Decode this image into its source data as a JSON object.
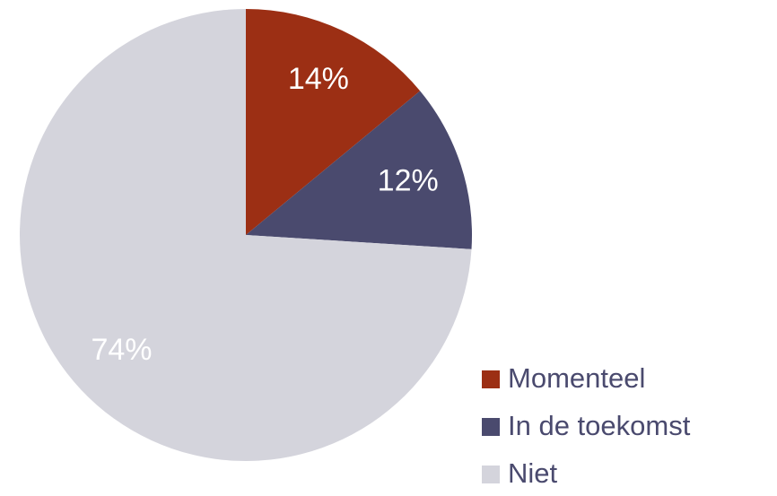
{
  "chart_data": {
    "type": "pie",
    "categories": [
      "Momenteel",
      "In de toekomst",
      "Niet"
    ],
    "values": [
      14,
      12,
      74
    ],
    "value_labels": [
      "14%",
      "12%",
      "74%"
    ],
    "colors": [
      "#9c2f14",
      "#4a4a6e",
      "#d4d4dc"
    ],
    "legend": "bottom-right"
  }
}
